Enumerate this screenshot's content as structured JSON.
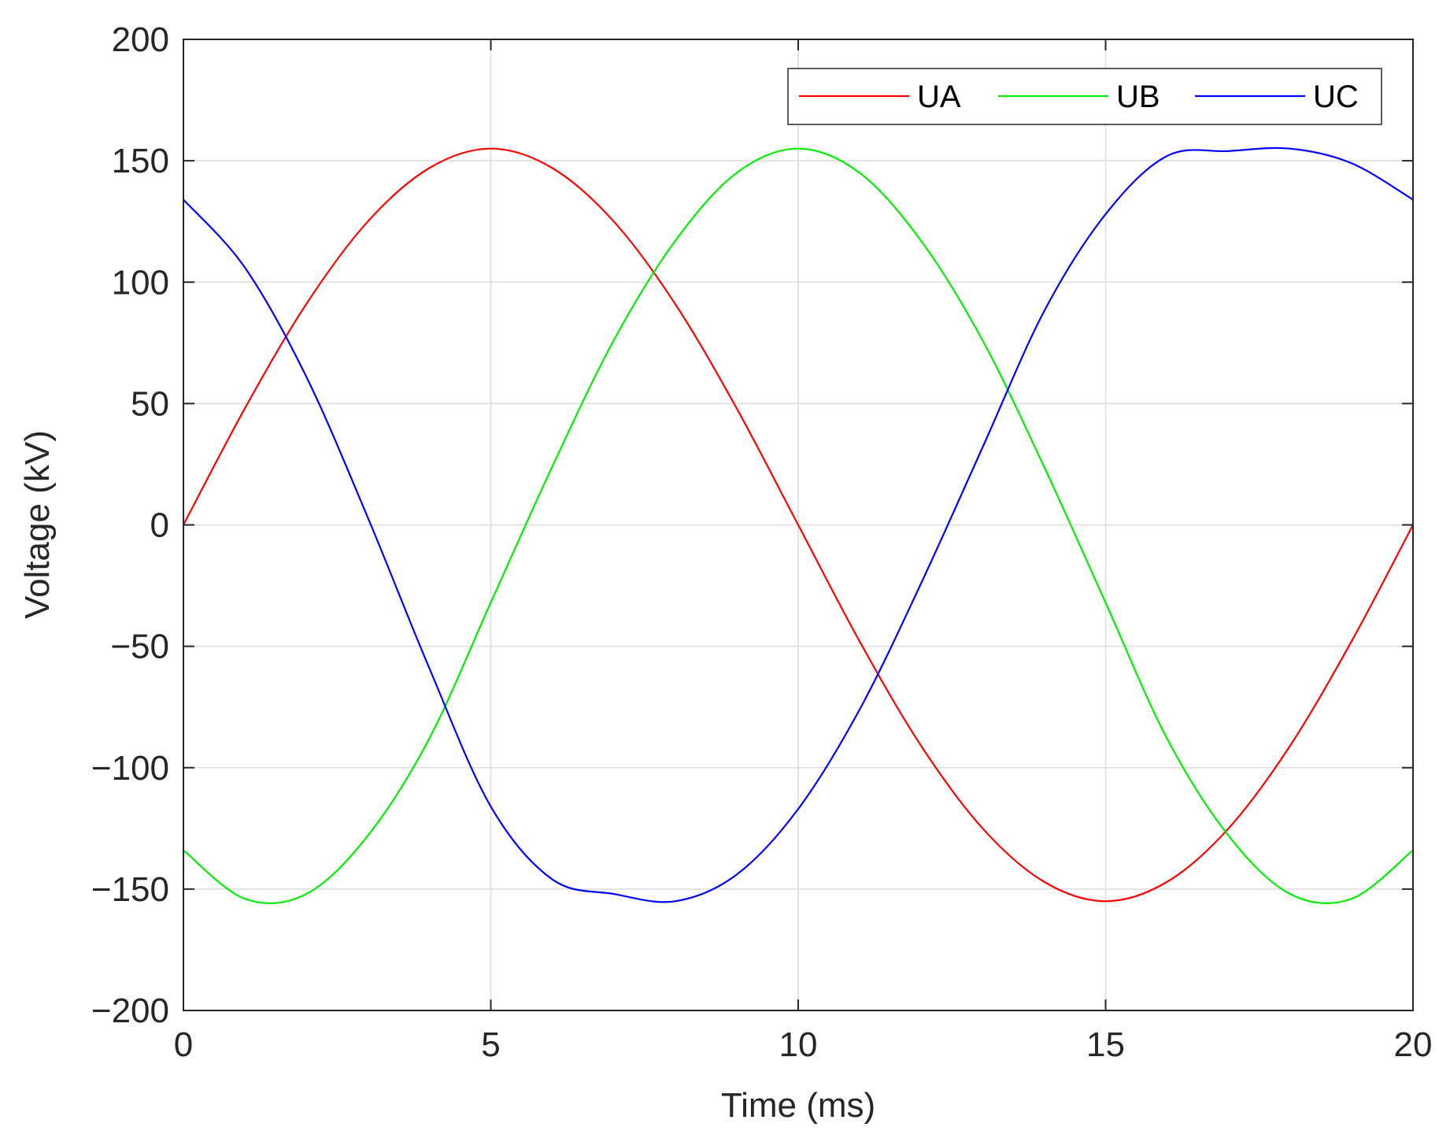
{
  "chart_data": {
    "type": "line",
    "xlabel": "Time (ms)",
    "ylabel": "Voltage (kV)",
    "xlim": [
      0,
      20
    ],
    "ylim": [
      -200,
      200
    ],
    "xticks": [
      "0",
      "5",
      "10",
      "15",
      "20"
    ],
    "yticks": [
      "200",
      "150",
      "100",
      "50",
      "0",
      "−50",
      "−100",
      "−150",
      "−200"
    ],
    "grid": true,
    "legend_position": "top-right",
    "legend_orientation": "horizontal",
    "x": [
      0,
      1,
      2,
      3,
      4,
      5,
      6,
      7,
      8,
      9,
      10,
      11,
      12,
      13,
      14,
      15,
      16,
      17,
      18,
      19,
      20
    ],
    "series": [
      {
        "name": "UA",
        "color": "#ff0000",
        "values": [
          0,
          48,
          91,
          125,
          147,
          155,
          147,
          125,
          91,
          48,
          0,
          -48,
          -91,
          -125,
          -147,
          -155,
          -147,
          -125,
          -91,
          -48,
          0
        ]
      },
      {
        "name": "UB",
        "color": "#00ee00",
        "values": [
          -134,
          -154,
          -152,
          -128,
          -88,
          -32,
          24,
          76,
          117,
          145,
          155,
          145,
          117,
          76,
          24,
          -32,
          -88,
          -128,
          -152,
          -154,
          -134
        ]
      },
      {
        "name": "UC",
        "color": "#0000ff",
        "values": [
          134,
          106,
          61,
          3,
          -59,
          -116,
          -146,
          -152,
          -155,
          -144,
          -117,
          -76,
          -24,
          32,
          88,
          128,
          152,
          154,
          155,
          149,
          134
        ]
      }
    ]
  }
}
